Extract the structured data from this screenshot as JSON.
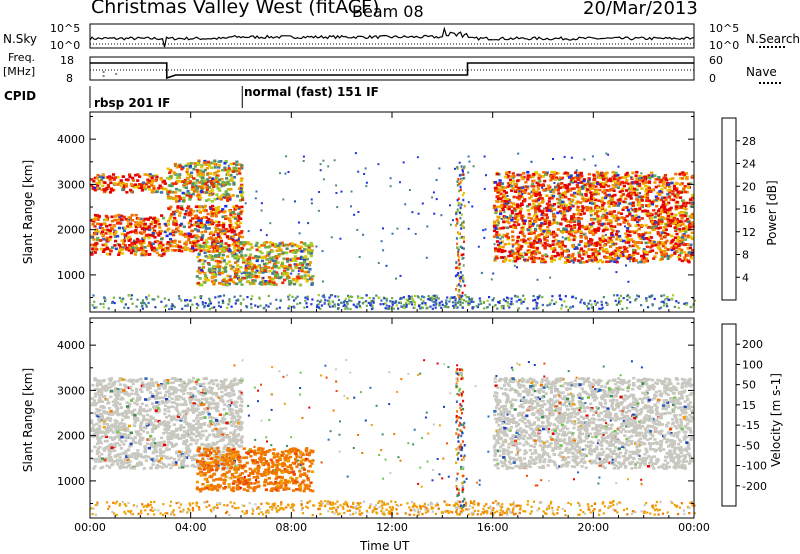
{
  "header": {
    "station": "Christmas Valley West (fitACF)",
    "beam": "Beam 08",
    "date": "20/Mar/2013"
  },
  "strips": {
    "nsky_label": "N.Sky",
    "nsky_ticks": [
      "10^5",
      "10^0"
    ],
    "nsearch_label": "N.Search",
    "nsearch_ticks": [
      "10^5",
      "10^0"
    ],
    "freq_label": "Freq.",
    "freq_unit": "[MHz]",
    "freq_ticks": [
      "18",
      "8"
    ],
    "nave_label": "Nave",
    "nave_ticks": [
      "60",
      "0"
    ],
    "cpid_label": "CPID",
    "modes": [
      "rbsp 201 IF",
      "normal (fast) 151 IF"
    ]
  },
  "chart_data": [
    {
      "type": "heatmap",
      "name": "Power",
      "ylabel": "Slant Range [km]",
      "ylim": [
        180,
        4600
      ],
      "yticks": [
        "1000",
        "2000",
        "3000",
        "4000"
      ],
      "colorbar_label": "Power [dB]",
      "colorbar_ticks": [
        "4",
        "8",
        "12",
        "16",
        "20",
        "24",
        "28"
      ],
      "colorscale": [
        "#1f2ee6",
        "#2744c0",
        "#3a6fb0",
        "#4f8c6e",
        "#6fb04c",
        "#9fd02e",
        "#e8c400",
        "#f29a00",
        "#f06a00",
        "#ee2a00",
        "#e60000"
      ],
      "features": [
        {
          "t": [
            0.0,
            3.0
          ],
          "r": [
            1450,
            2350
          ],
          "level": "high"
        },
        {
          "t": [
            0.0,
            3.0
          ],
          "r": [
            2850,
            3250
          ],
          "level": "high"
        },
        {
          "t": [
            3.0,
            6.0
          ],
          "r": [
            1550,
            2550
          ],
          "level": "high"
        },
        {
          "t": [
            3.0,
            6.0
          ],
          "r": [
            2650,
            3550
          ],
          "level": "mid-high"
        },
        {
          "t": [
            4.2,
            8.8
          ],
          "r": [
            800,
            1750
          ],
          "level": "mid-high"
        },
        {
          "t": [
            16.0,
            23.9
          ],
          "r": [
            1300,
            3300
          ],
          "level": "high"
        }
      ]
    },
    {
      "type": "heatmap",
      "name": "Velocity",
      "ylabel": "Slant Range [km]",
      "ylim": [
        180,
        4600
      ],
      "yticks": [
        "1000",
        "2000",
        "3000",
        "4000"
      ],
      "colorbar_label": "Velocity [m s-1]",
      "colorbar_ticks": [
        "200",
        "100",
        "50",
        "15",
        "-15",
        "-50",
        "-100",
        "-200"
      ],
      "colorscale": [
        "#1a3fbf",
        "#2f6ab8",
        "#3f8c55",
        "#6fc34a",
        "#c8c8c0",
        "#f0a000",
        "#f07800",
        "#ee4a00",
        "#e60000"
      ],
      "features": [
        {
          "t": [
            0.0,
            6.0
          ],
          "r": [
            1300,
            3300
          ],
          "velocity": "-15 to 15"
        },
        {
          "t": [
            4.2,
            8.8
          ],
          "r": [
            800,
            1750
          ],
          "velocity": "-100 to -50"
        },
        {
          "t": [
            16.0,
            23.9
          ],
          "r": [
            1300,
            3300
          ],
          "velocity": "-15 to 15"
        }
      ]
    }
  ],
  "xaxis": {
    "label": "Time UT",
    "ticks": [
      "00:00",
      "04:00",
      "08:00",
      "12:00",
      "16:00",
      "20:00",
      "00:00"
    ],
    "range_hours": [
      0,
      24
    ]
  }
}
